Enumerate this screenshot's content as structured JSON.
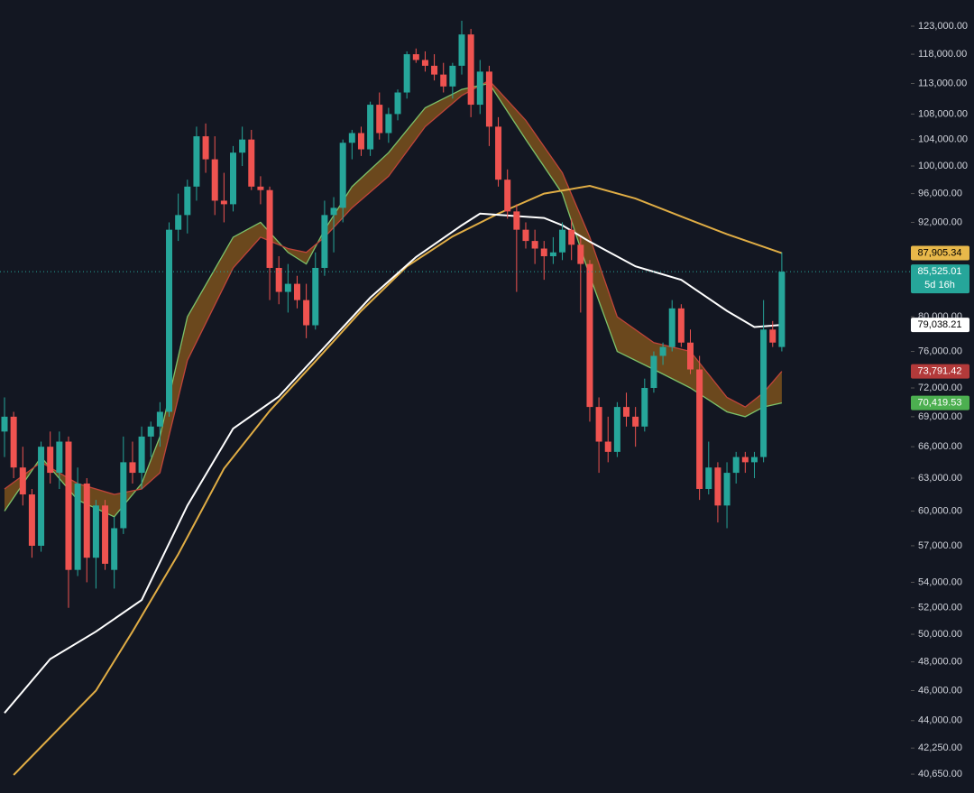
{
  "chart_data": {
    "type": "candlestick",
    "log_scale": true,
    "ylim": [
      39530,
      127860
    ],
    "yticks": [
      {
        "value": 123000,
        "label": "123,000.00"
      },
      {
        "value": 118000,
        "label": "118,000.00"
      },
      {
        "value": 113000,
        "label": "113,000.00"
      },
      {
        "value": 108000,
        "label": "108,000.00"
      },
      {
        "value": 104000,
        "label": "104,000.00"
      },
      {
        "value": 100000,
        "label": "100,000.00"
      },
      {
        "value": 96000,
        "label": "96,000.00"
      },
      {
        "value": 92000,
        "label": "92,000.00"
      },
      {
        "value": 80000,
        "label": "80,000.00"
      },
      {
        "value": 76000,
        "label": "76,000.00"
      },
      {
        "value": 72000,
        "label": "72,000.00"
      },
      {
        "value": 69000,
        "label": "69,000.00"
      },
      {
        "value": 66000,
        "label": "66,000.00"
      },
      {
        "value": 63000,
        "label": "63,000.00"
      },
      {
        "value": 60000,
        "label": "60,000.00"
      },
      {
        "value": 57000,
        "label": "57,000.00"
      },
      {
        "value": 54000,
        "label": "54,000.00"
      },
      {
        "value": 52000,
        "label": "52,000.00"
      },
      {
        "value": 50000,
        "label": "50,000.00"
      },
      {
        "value": 48000,
        "label": "48,000.00"
      },
      {
        "value": 46000,
        "label": "46,000.00"
      },
      {
        "value": 44000,
        "label": "44,000.00"
      },
      {
        "value": 42250,
        "label": "42,250.00"
      },
      {
        "value": 40650,
        "label": "40,650.00"
      }
    ],
    "up_color": "#26a69a",
    "down_color": "#ef5350",
    "open": [
      67500,
      69000,
      64000,
      61500,
      57000,
      66000,
      63500,
      66500,
      55000,
      62500,
      56000,
      60500,
      55000,
      58500,
      64500,
      63500,
      67000,
      68000,
      69500,
      91000,
      93000,
      97000,
      104500,
      101000,
      95000,
      94500,
      102000,
      104000,
      97000,
      96500,
      86000,
      83000,
      84000,
      82000,
      79000,
      86000,
      93000,
      94000,
      103500,
      105000,
      102500,
      109500,
      105000,
      108000,
      111500,
      118000,
      117000,
      116000,
      114500,
      112500,
      116000,
      121500,
      109500,
      115000,
      106000,
      98000,
      93500,
      91000,
      89500,
      88500,
      87500,
      88000,
      91000,
      89000,
      86500,
      70000,
      66500,
      65500,
      70000,
      69000,
      68000,
      72000,
      75500,
      76500,
      81000,
      77000,
      74000,
      62000,
      64000,
      60500,
      63500,
      65000,
      64500,
      65000,
      78500,
      76500
    ],
    "high": [
      71000,
      69500,
      66000,
      62000,
      66500,
      67500,
      67500,
      67000,
      64000,
      63000,
      61000,
      61000,
      59500,
      67000,
      66500,
      68000,
      68500,
      70500,
      92000,
      96000,
      98000,
      106000,
      106500,
      104500,
      99000,
      103000,
      106000,
      105500,
      98500,
      97000,
      87500,
      86500,
      85000,
      84000,
      88000,
      95000,
      95500,
      104000,
      105500,
      106000,
      110000,
      111500,
      109000,
      112000,
      118500,
      119000,
      118500,
      118000,
      116500,
      116500,
      124000,
      122500,
      117000,
      116000,
      107500,
      99500,
      94500,
      92000,
      91000,
      89500,
      90000,
      92000,
      92500,
      90000,
      87000,
      71000,
      69000,
      70500,
      71500,
      70000,
      73000,
      76000,
      77000,
      82000,
      81500,
      78500,
      75500,
      66500,
      64500,
      64500,
      65500,
      65500,
      65500,
      82000,
      79500,
      88000
    ],
    "low": [
      65000,
      63000,
      60500,
      56000,
      56500,
      62500,
      62000,
      52000,
      54500,
      54000,
      53500,
      55000,
      53500,
      58000,
      62500,
      62000,
      65000,
      66000,
      69000,
      89500,
      90500,
      95000,
      99000,
      93000,
      92000,
      93500,
      100000,
      96500,
      94500,
      82000,
      81500,
      80500,
      81000,
      77500,
      78500,
      85000,
      88000,
      92000,
      101000,
      101500,
      101500,
      104000,
      103500,
      107000,
      110500,
      116500,
      115000,
      113500,
      111500,
      110500,
      114500,
      107500,
      108000,
      103000,
      97000,
      92500,
      83000,
      88500,
      86500,
      84500,
      86500,
      87000,
      87000,
      80500,
      68500,
      63500,
      64500,
      65000,
      68000,
      66000,
      67500,
      71500,
      74500,
      76000,
      76500,
      73500,
      61000,
      61500,
      59000,
      58500,
      62500,
      63500,
      63000,
      64500,
      76500,
      76000
    ],
    "close": [
      69000,
      64000,
      61500,
      57000,
      66000,
      63500,
      66500,
      55000,
      62500,
      56000,
      60500,
      55500,
      58500,
      64500,
      63500,
      67000,
      68000,
      69500,
      91000,
      93000,
      97000,
      104500,
      101000,
      95000,
      94500,
      102000,
      104000,
      97000,
      96500,
      86000,
      83000,
      84000,
      82000,
      79000,
      86000,
      93000,
      94000,
      103500,
      105000,
      102500,
      109500,
      105000,
      108000,
      111500,
      118000,
      117000,
      116000,
      114500,
      112500,
      116000,
      121500,
      109500,
      115000,
      106000,
      98000,
      93500,
      91000,
      89500,
      88500,
      87500,
      88000,
      91000,
      89000,
      86500,
      70000,
      66500,
      65500,
      70000,
      69000,
      68000,
      72000,
      75500,
      76500,
      81000,
      77000,
      74000,
      62000,
      64000,
      60500,
      63500,
      65000,
      64500,
      65000,
      78500,
      77000,
      85525.01
    ],
    "lines": [
      {
        "color": "#e0ad45",
        "x": [
          1,
          10,
          14,
          19,
          24,
          29,
          34,
          39,
          44,
          49,
          54,
          59,
          64,
          69,
          74,
          79,
          85
        ],
        "values": [
          40600,
          46000,
          50200,
          56300,
          63900,
          69600,
          74900,
          80700,
          86200,
          90100,
          93200,
          96000,
          97100,
          95300,
          92800,
          90400,
          87905.34
        ]
      },
      {
        "color": "#ffffff",
        "x": [
          0,
          5,
          10,
          15,
          20,
          25,
          30,
          35,
          40,
          45,
          50,
          52,
          59,
          61,
          64,
          69,
          74,
          79,
          82,
          85
        ],
        "values": [
          44500,
          48200,
          50200,
          52600,
          60500,
          67800,
          71100,
          76500,
          82300,
          87400,
          91600,
          93200,
          92600,
          91600,
          89400,
          86200,
          84500,
          80700,
          78800,
          79038.21
        ]
      }
    ],
    "cloud": {
      "color": "#8a5a1c",
      "x": [
        0,
        4,
        8,
        12,
        15,
        17,
        20,
        25,
        28,
        31,
        33,
        35,
        38,
        42,
        46,
        50,
        53,
        57,
        61,
        64,
        67,
        71,
        75,
        79,
        81,
        83,
        85
      ],
      "fast": {
        "color": "#7cc26a",
        "values": [
          60000,
          65000,
          61000,
          59500,
          62500,
          67000,
          80000,
          90000,
          92000,
          88000,
          86500,
          91000,
          97000,
          102000,
          109000,
          112000,
          113000,
          104000,
          96000,
          85000,
          76000,
          74000,
          72000,
          69500,
          69000,
          70000,
          70419.53
        ]
      },
      "slow": {
        "color": "#c0443a",
        "values": [
          62000,
          64500,
          62500,
          61500,
          62000,
          63500,
          75000,
          86000,
          90000,
          88500,
          88000,
          90000,
          94000,
          98500,
          106000,
          111000,
          113500,
          107000,
          99000,
          90000,
          80000,
          77000,
          76000,
          71000,
          70000,
          71500,
          73791.42
        ]
      }
    },
    "price_labels": [
      {
        "value": 87905.34,
        "label": "87,905.34",
        "color": "#e8b84a",
        "text_color": "#000000"
      },
      {
        "value": 85525.01,
        "label": "85,525.01",
        "color": "#26a69a",
        "text_color": "#ffffff",
        "countdown": "5d 16h"
      },
      {
        "value": 79038.21,
        "label": "79,038.21",
        "color": "#ffffff",
        "text_color": "#000000"
      },
      {
        "value": 73791.42,
        "label": "73,791.42",
        "color": "#b33a3a",
        "text_color": "#ffffff"
      },
      {
        "value": 70419.53,
        "label": "70,419.53",
        "color": "#4caf50",
        "text_color": "#ffffff"
      }
    ]
  }
}
